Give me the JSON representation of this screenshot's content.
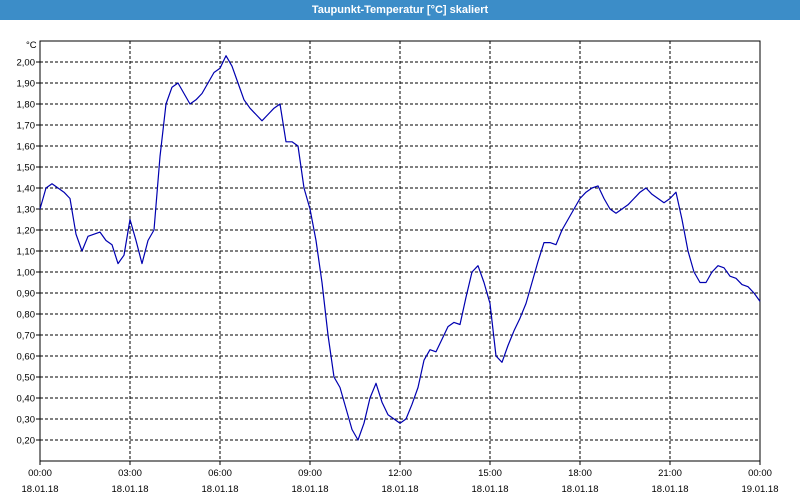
{
  "window": {
    "title": "Taupunkt-Temperatur [°C] skaliert"
  },
  "chart_data": {
    "type": "line",
    "title": "Taupunkt-Temperatur [°C] skaliert",
    "ylabel": "°C",
    "xlabel": "",
    "ylim": [
      0.1,
      2.1
    ],
    "xlim_hours": [
      0,
      24
    ],
    "y_ticks": [
      0.2,
      0.3,
      0.4,
      0.5,
      0.6,
      0.7,
      0.8,
      0.9,
      1.0,
      1.1,
      1.2,
      1.3,
      1.4,
      1.5,
      1.6,
      1.7,
      1.8,
      1.9,
      2.0
    ],
    "y_tick_labels": [
      "0,20",
      "0,30",
      "0,40",
      "0,50",
      "0,60",
      "0,70",
      "0,80",
      "0,90",
      "1,00",
      "1,10",
      "1,20",
      "1,30",
      "1,40",
      "1,50",
      "1,60",
      "1,70",
      "1,80",
      "1,90",
      "2,00"
    ],
    "x_ticks": [
      {
        "hour": 0,
        "time": "00:00",
        "date": "18.01.18"
      },
      {
        "hour": 3,
        "time": "03:00",
        "date": "18.01.18"
      },
      {
        "hour": 6,
        "time": "06:00",
        "date": "18.01.18"
      },
      {
        "hour": 9,
        "time": "09:00",
        "date": "18.01.18"
      },
      {
        "hour": 12,
        "time": "12:00",
        "date": "18.01.18"
      },
      {
        "hour": 15,
        "time": "15:00",
        "date": "18.01.18"
      },
      {
        "hour": 18,
        "time": "18:00",
        "date": "18.01.18"
      },
      {
        "hour": 21,
        "time": "21:00",
        "date": "18.01.18"
      },
      {
        "hour": 24,
        "time": "00:00",
        "date": "19.01.18"
      }
    ],
    "grid": true,
    "line_color": "#0000b0",
    "series": [
      {
        "x_hours": [
          0,
          0.2,
          0.4,
          0.6,
          0.8,
          1.0,
          1.2,
          1.4,
          1.6,
          1.8,
          2.0,
          2.2,
          2.4,
          2.6,
          2.8,
          3.0,
          3.2,
          3.4,
          3.6,
          3.8,
          4.0,
          4.2,
          4.4,
          4.6,
          4.8,
          5.0,
          5.2,
          5.4,
          5.6,
          5.8,
          6.0,
          6.2,
          6.4,
          6.6,
          6.8,
          7.0,
          7.2,
          7.4,
          7.6,
          7.8,
          8.0,
          8.2,
          8.4,
          8.6,
          8.8,
          9.0,
          9.2,
          9.4,
          9.6,
          9.8,
          10.0,
          10.2,
          10.4,
          10.6,
          10.8,
          11.0,
          11.2,
          11.4,
          11.6,
          11.8,
          12.0,
          12.2,
          12.4,
          12.6,
          12.8,
          13.0,
          13.2,
          13.4,
          13.6,
          13.8,
          14.0,
          14.2,
          14.4,
          14.6,
          14.8,
          15.0,
          15.2,
          15.4,
          15.6,
          15.8,
          16.0,
          16.2,
          16.4,
          16.6,
          16.8,
          17.0,
          17.2,
          17.4,
          17.6,
          17.8,
          18.0,
          18.2,
          18.4,
          18.6,
          18.8,
          19.0,
          19.2,
          19.4,
          19.6,
          19.8,
          20.0,
          20.2,
          20.4,
          20.6,
          20.8,
          21.0,
          21.2,
          21.4,
          21.6,
          21.8,
          22.0,
          22.2,
          22.4,
          22.6,
          22.8,
          23.0,
          23.2,
          23.4,
          23.6,
          23.8,
          24.0
        ],
        "values": [
          1.3,
          1.4,
          1.42,
          1.4,
          1.38,
          1.35,
          1.18,
          1.1,
          1.17,
          1.18,
          1.19,
          1.15,
          1.13,
          1.04,
          1.08,
          1.25,
          1.15,
          1.04,
          1.15,
          1.2,
          1.55,
          1.8,
          1.88,
          1.9,
          1.85,
          1.8,
          1.82,
          1.85,
          1.9,
          1.95,
          1.97,
          2.03,
          1.98,
          1.9,
          1.82,
          1.78,
          1.75,
          1.72,
          1.75,
          1.78,
          1.8,
          1.62,
          1.62,
          1.6,
          1.4,
          1.3,
          1.15,
          0.95,
          0.7,
          0.5,
          0.45,
          0.35,
          0.25,
          0.2,
          0.28,
          0.4,
          0.47,
          0.38,
          0.32,
          0.3,
          0.28,
          0.3,
          0.37,
          0.45,
          0.58,
          0.63,
          0.62,
          0.68,
          0.74,
          0.76,
          0.75,
          0.88,
          1.0,
          1.03,
          0.95,
          0.85,
          0.6,
          0.57,
          0.65,
          0.72,
          0.78,
          0.85,
          0.95,
          1.05,
          1.14,
          1.14,
          1.13,
          1.2,
          1.25,
          1.3,
          1.35,
          1.38,
          1.4,
          1.41,
          1.35,
          1.3,
          1.28,
          1.3,
          1.32,
          1.35,
          1.38,
          1.4,
          1.37,
          1.35,
          1.33,
          1.35,
          1.38,
          1.25,
          1.1,
          1.0,
          0.95,
          0.95,
          1.0,
          1.03,
          1.02,
          0.98,
          0.97,
          0.94,
          0.93,
          0.9,
          0.86
        ]
      }
    ]
  }
}
